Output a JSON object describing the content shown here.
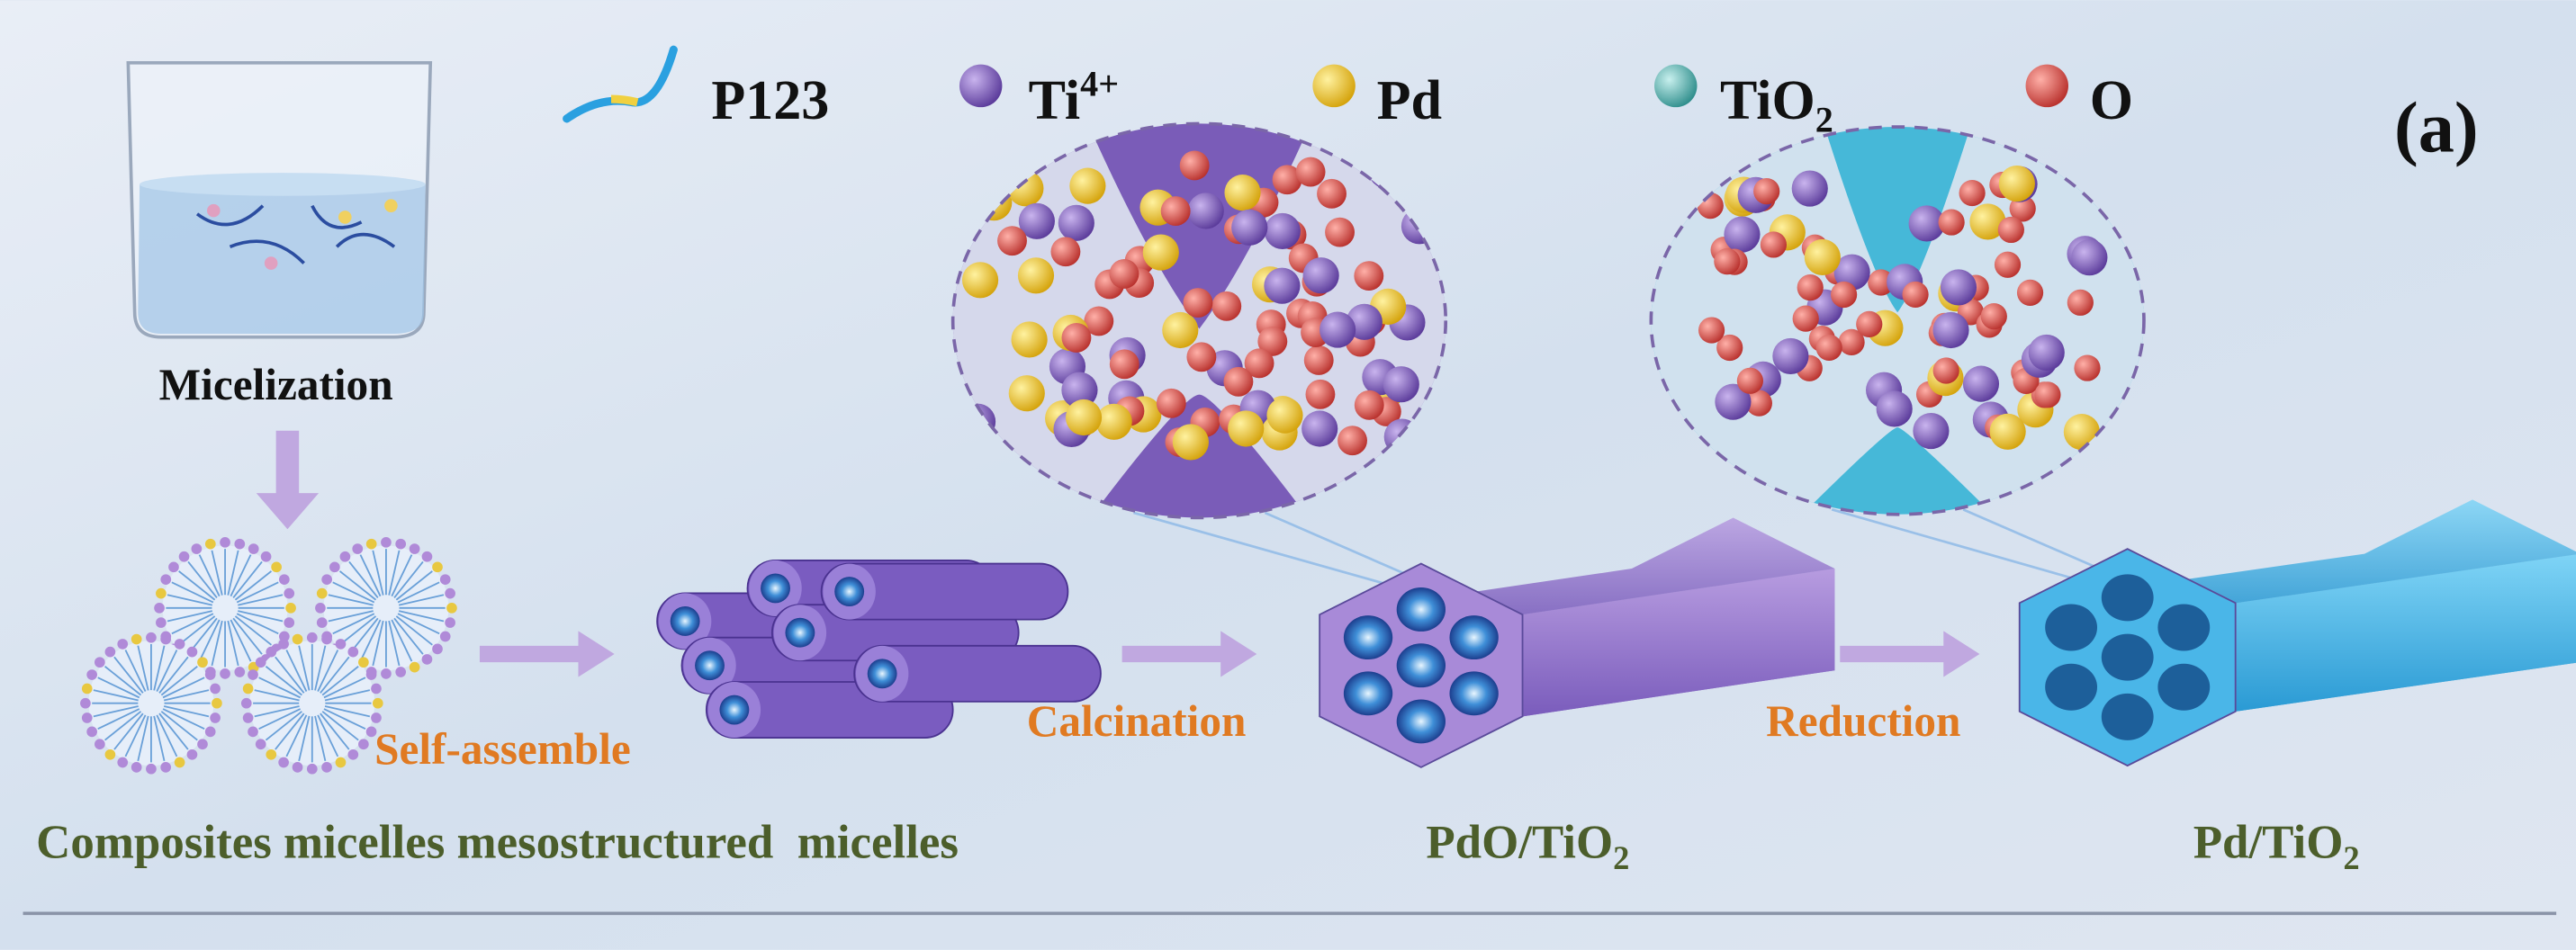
{
  "legend": [
    {
      "label": "P123"
    },
    {
      "label": "Ti",
      "sup": "4+"
    },
    {
      "label": "Pd"
    },
    {
      "label": "TiO",
      "sub": "2"
    },
    {
      "label": "O"
    }
  ],
  "panel_label": "(a)",
  "steps": {
    "micelization": "Micelization",
    "self_assemble": "Self-assemble",
    "calcination": "Calcination",
    "reduction": "Reduction"
  },
  "products": [
    {
      "label": "Composites micelles mesostructured  micelles"
    },
    {
      "label": "PdO/TiO",
      "sub": "2"
    },
    {
      "label": "Pd/TiO",
      "sub": "2"
    }
  ]
}
